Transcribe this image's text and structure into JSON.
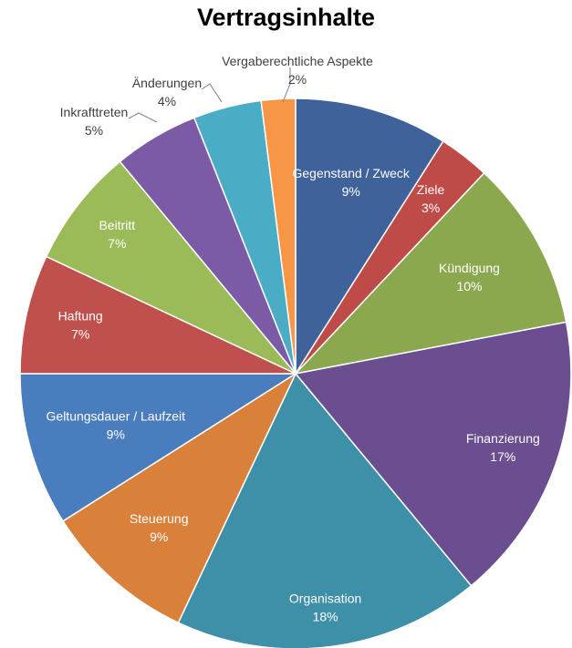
{
  "chart_data": {
    "type": "pie",
    "title": "Vertragsinhalte",
    "slices": [
      {
        "label": "Gegenstand / Zweck",
        "value": 9,
        "percent": "9%",
        "color": "#3F629A"
      },
      {
        "label": "Ziele",
        "value": 3,
        "percent": "3%",
        "color": "#BE4B48"
      },
      {
        "label": "Kündigung",
        "value": 10,
        "percent": "10%",
        "color": "#8CA84F"
      },
      {
        "label": "Finanzierung",
        "value": 17,
        "percent": "17%",
        "color": "#6B4E8F"
      },
      {
        "label": "Organisation",
        "value": 18,
        "percent": "18%",
        "color": "#3D90A8"
      },
      {
        "label": "Steuerung",
        "value": 9,
        "percent": "9%",
        "color": "#D9803A"
      },
      {
        "label": "Geltungsdauer / Laufzeit",
        "value": 9,
        "percent": "9%",
        "color": "#4A7DBD"
      },
      {
        "label": "Haftung",
        "value": 7,
        "percent": "7%",
        "color": "#C0504D"
      },
      {
        "label": "Beitritt",
        "value": 7,
        "percent": "7%",
        "color": "#9BBB59"
      },
      {
        "label": "Inkrafttreten",
        "value": 5,
        "percent": "5%",
        "color": "#7B5AA6"
      },
      {
        "label": "Änderungen",
        "value": 4,
        "percent": "4%",
        "color": "#4BACC6"
      },
      {
        "label": "Vergaberechtliche Aspekte",
        "value": 2,
        "percent": "2%",
        "color": "#F79646"
      }
    ]
  }
}
